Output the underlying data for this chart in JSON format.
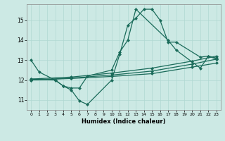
{
  "background_color": "#cce9e4",
  "grid_color": "#b0d8d2",
  "line_color": "#1a6b5a",
  "xlabel": "Humidex (Indice chaleur)",
  "xlim": [
    -0.5,
    23.5
  ],
  "ylim": [
    10.5,
    15.8
  ],
  "yticks": [
    11,
    12,
    13,
    14,
    15
  ],
  "xticks": [
    0,
    1,
    2,
    3,
    4,
    5,
    6,
    7,
    8,
    9,
    10,
    11,
    12,
    13,
    14,
    15,
    16,
    17,
    18,
    19,
    20,
    21,
    22,
    23
  ],
  "line1_x": [
    0,
    1,
    3,
    4,
    5,
    6,
    7,
    10,
    11,
    12,
    13,
    14,
    15,
    16,
    17,
    18,
    21,
    22,
    23
  ],
  "line1_y": [
    13.0,
    12.4,
    12.0,
    11.7,
    11.5,
    10.95,
    10.78,
    12.0,
    13.3,
    14.75,
    15.1,
    15.55,
    15.55,
    15.0,
    13.9,
    13.9,
    13.15,
    13.2,
    13.05
  ],
  "line2_x": [
    0,
    3,
    4,
    5,
    6,
    7,
    10,
    11,
    12,
    13,
    17,
    18,
    21,
    22,
    23
  ],
  "line2_y": [
    12.05,
    12.0,
    11.7,
    11.6,
    11.6,
    12.2,
    12.5,
    13.4,
    14.0,
    15.55,
    14.0,
    13.5,
    12.6,
    13.2,
    13.1
  ],
  "line3_x": [
    0,
    5,
    10,
    15,
    20,
    23
  ],
  "line3_y": [
    12.0,
    12.1,
    12.25,
    12.45,
    12.8,
    13.05
  ],
  "line4_x": [
    0,
    5,
    10,
    15,
    20,
    23
  ],
  "line4_y": [
    12.05,
    12.15,
    12.35,
    12.6,
    12.95,
    13.2
  ],
  "line5_x": [
    0,
    5,
    10,
    15,
    20,
    23
  ],
  "line5_y": [
    12.0,
    12.08,
    12.18,
    12.32,
    12.65,
    12.85
  ]
}
